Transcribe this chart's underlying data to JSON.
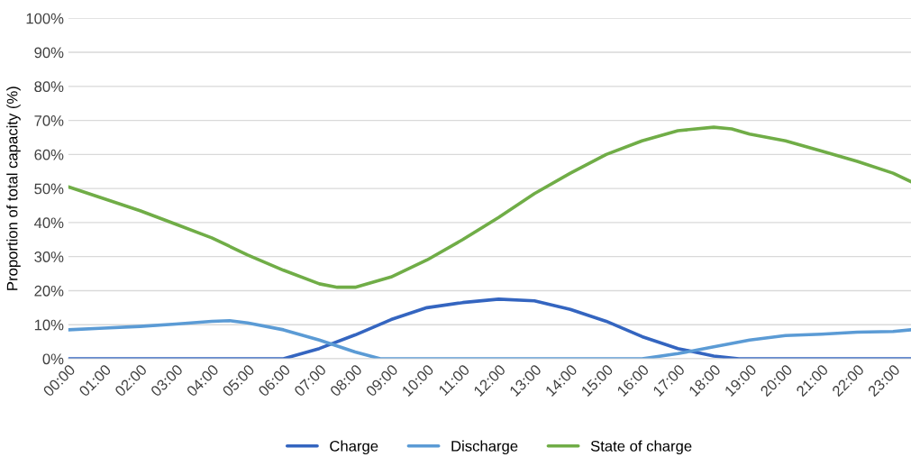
{
  "chart_data": {
    "type": "line",
    "ylabel": "Proportion of total capacity (%)",
    "ylim": [
      0,
      100
    ],
    "yticks": [
      {
        "value": 0,
        "label": "0%"
      },
      {
        "value": 10,
        "label": "10%"
      },
      {
        "value": 20,
        "label": "20%"
      },
      {
        "value": 30,
        "label": "30%"
      },
      {
        "value": 40,
        "label": "40%"
      },
      {
        "value": 50,
        "label": "50%"
      },
      {
        "value": 60,
        "label": "60%"
      },
      {
        "value": 70,
        "label": "70%"
      },
      {
        "value": 80,
        "label": "80%"
      },
      {
        "value": 90,
        "label": "90%"
      },
      {
        "value": 100,
        "label": "100%"
      }
    ],
    "xlim": [
      0,
      23.5
    ],
    "xticks": [
      {
        "value": 0,
        "label": "00:00"
      },
      {
        "value": 1,
        "label": "01:00"
      },
      {
        "value": 2,
        "label": "02:00"
      },
      {
        "value": 3,
        "label": "03:00"
      },
      {
        "value": 4,
        "label": "04:00"
      },
      {
        "value": 5,
        "label": "05:00"
      },
      {
        "value": 6,
        "label": "06:00"
      },
      {
        "value": 7,
        "label": "07:00"
      },
      {
        "value": 8,
        "label": "08:00"
      },
      {
        "value": 9,
        "label": "09:00"
      },
      {
        "value": 10,
        "label": "10:00"
      },
      {
        "value": 11,
        "label": "11:00"
      },
      {
        "value": 12,
        "label": "12:00"
      },
      {
        "value": 13,
        "label": "13:00"
      },
      {
        "value": 14,
        "label": "14:00"
      },
      {
        "value": 15,
        "label": "15:00"
      },
      {
        "value": 16,
        "label": "16:00"
      },
      {
        "value": 17,
        "label": "17:00"
      },
      {
        "value": 18,
        "label": "18:00"
      },
      {
        "value": 19,
        "label": "19:00"
      },
      {
        "value": 20,
        "label": "20:00"
      },
      {
        "value": 21,
        "label": "21:00"
      },
      {
        "value": 22,
        "label": "22:00"
      },
      {
        "value": 23,
        "label": "23:00"
      }
    ],
    "grid": "y",
    "legend": "bottom",
    "marker": "none",
    "series": [
      {
        "name": "Charge",
        "color": "#3465c0",
        "x": [
          0,
          6,
          7,
          8,
          9,
          10,
          11,
          12,
          13,
          14,
          15,
          16,
          17,
          18,
          18.7,
          23.5
        ],
        "values": [
          0,
          0,
          3,
          7,
          11.5,
          15,
          16.5,
          17.5,
          17,
          14.5,
          11,
          6.5,
          3,
          0.8,
          0,
          0
        ]
      },
      {
        "name": "Discharge",
        "color": "#5b9bd5",
        "x": [
          0,
          1,
          2,
          3,
          4,
          4.5,
          5,
          6,
          7,
          8,
          8.7,
          16,
          17,
          18,
          19,
          20,
          21,
          22,
          23,
          23.5
        ],
        "values": [
          8.5,
          9,
          9.5,
          10.2,
          11,
          11.2,
          10.5,
          8.5,
          5.5,
          2,
          0,
          0,
          1.5,
          3.5,
          5.5,
          6.8,
          7.2,
          7.8,
          8,
          8.5
        ]
      },
      {
        "name": "State of charge",
        "color": "#70ad47",
        "x": [
          0,
          1,
          2,
          3,
          4,
          5,
          6,
          7,
          7.5,
          8,
          9,
          10,
          11,
          12,
          13,
          14,
          15,
          16,
          17,
          18,
          18.5,
          19,
          20,
          21,
          22,
          23,
          23.5
        ],
        "values": [
          50.5,
          47,
          43.5,
          39.5,
          35.5,
          30.5,
          26,
          22,
          21,
          21,
          24,
          29,
          35,
          41.5,
          48.5,
          54.5,
          60,
          64,
          67,
          68,
          67.5,
          66,
          64,
          61,
          58,
          54.5,
          52
        ]
      }
    ]
  }
}
